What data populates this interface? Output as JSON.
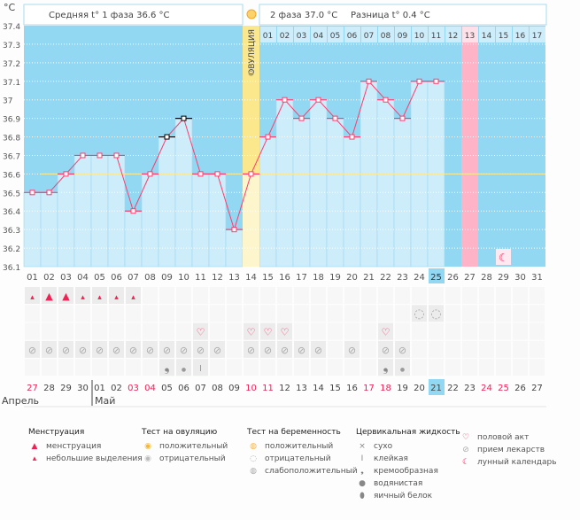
{
  "header": {
    "phase1": "Средняя t° 1 фаза 36.6 °C",
    "phase2": "2 фаза 37.0 °C",
    "diff": "Разница t° 0.4 °C",
    "ovulation": "ОВУЛЯЦИЯ"
  },
  "chart_data": {
    "type": "bar",
    "ylabel": "°C",
    "ylim": [
      36.1,
      37.4
    ],
    "yticks": [
      "37.4",
      "37.3",
      "37.2",
      "37.1",
      "37",
      "36.9",
      "36.8",
      "36.7",
      "36.6",
      "36.5",
      "36.4",
      "36.3",
      "36.2",
      "36.1"
    ],
    "grid": true,
    "coverline": 36.6,
    "ovulation_day": 14,
    "cycle_days": [
      "01",
      "02",
      "03",
      "04",
      "05",
      "06",
      "07",
      "08",
      "09",
      "10",
      "11",
      "12",
      "13",
      "14",
      "15",
      "16",
      "17",
      "18",
      "19",
      "20",
      "21",
      "22",
      "23",
      "24",
      "25",
      "26",
      "27",
      "28",
      "29",
      "30",
      "31"
    ],
    "today_day": "25",
    "phase2_days": [
      "01",
      "02",
      "03",
      "04",
      "05",
      "06",
      "07",
      "08",
      "09",
      "10",
      "11",
      "12",
      "13",
      "14",
      "15",
      "16",
      "17"
    ],
    "expected_period_day": 13,
    "temperatures": [
      36.5,
      36.5,
      36.6,
      36.7,
      36.7,
      36.7,
      36.4,
      36.6,
      36.8,
      36.9,
      36.6,
      36.6,
      36.3,
      36.6,
      36.8,
      37.0,
      36.9,
      37.0,
      36.9,
      36.8,
      37.1,
      37.0,
      36.9,
      37.1,
      37.1
    ],
    "excluded_days": [
      9,
      10
    ],
    "moon_day": 29,
    "colors": {
      "bg": "#92d8f2",
      "bar": "#cdedfb",
      "line": "#ff3c6e",
      "ovulation": "#fbe88c",
      "period": "#ffb3c6",
      "today": "#92d8f2"
    }
  },
  "calendar": {
    "dates": [
      "27",
      "28",
      "29",
      "30",
      "01",
      "02",
      "03",
      "04",
      "05",
      "06",
      "07",
      "08",
      "09",
      "10",
      "11",
      "12",
      "13",
      "14",
      "15",
      "16",
      "17",
      "18",
      "19",
      "20",
      "21",
      "22",
      "23",
      "24",
      "25",
      "26",
      "27"
    ],
    "weekend": [
      0,
      6,
      7,
      13,
      14,
      20,
      21,
      27,
      28
    ],
    "today_index": 24,
    "months": [
      "Апрель",
      "Май"
    ]
  },
  "rows": {
    "menstruation": {
      "1": "small",
      "2": "big",
      "3": "big",
      "4": "small",
      "5": "small",
      "6": "small",
      "7": "small"
    },
    "pregnancy_test": {
      "24": "negative",
      "25": "negative"
    },
    "intercourse": {
      "11": "heart",
      "14": "heart",
      "15": "heart",
      "16": "heart",
      "22": "heart"
    },
    "medication": {
      "1": "pill",
      "2": "pill",
      "3": "pill",
      "4": "pill",
      "5": "pill",
      "6": "pill",
      "7": "pill",
      "8": "pill",
      "9": "pill",
      "10": "pill",
      "11": "pill",
      "12": "pill",
      "14": "pill",
      "15": "pill",
      "16": "pill",
      "17": "pill",
      "18": "pill",
      "20": "pill",
      "22": "pill",
      "23": "pill"
    },
    "cervical": {
      "9": "creamy",
      "10": "watery",
      "11": "sticky",
      "22": "creamy",
      "23": "watery"
    }
  },
  "legend": [
    {
      "title": "Менструация",
      "items": [
        {
          "icon": "menstruation",
          "label": "менструация"
        },
        {
          "icon": "spotting",
          "label": "небольшие выделения"
        }
      ]
    },
    {
      "title": "Тест на овуляцию",
      "items": [
        {
          "icon": "positive",
          "label": "положительный"
        },
        {
          "icon": "negative",
          "label": "отрицательный"
        }
      ]
    },
    {
      "title": "Тест на беременность",
      "items": [
        {
          "icon": "preg-positive",
          "label": "положительный"
        },
        {
          "icon": "preg-negative",
          "label": "отрицательный"
        },
        {
          "icon": "preg-weak",
          "label": "слабоположительный"
        }
      ]
    },
    {
      "title": "Цервикальная жидкость",
      "items": [
        {
          "icon": "dry",
          "label": "сухо"
        },
        {
          "icon": "sticky",
          "label": "клейкая"
        },
        {
          "icon": "creamy",
          "label": "кремообразная"
        },
        {
          "icon": "watery",
          "label": "водянистая"
        },
        {
          "icon": "eggwhite",
          "label": "яичный белок"
        }
      ]
    },
    {
      "title": "",
      "items": [
        {
          "icon": "heart",
          "label": "половой акт"
        },
        {
          "icon": "pill",
          "label": "прием лекарств"
        },
        {
          "icon": "moon",
          "label": "лунный календарь"
        }
      ]
    }
  ]
}
